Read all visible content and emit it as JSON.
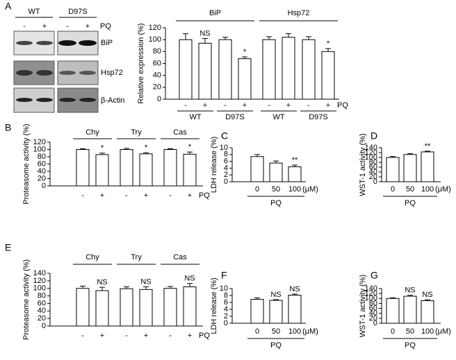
{
  "blot": {
    "panel": "A",
    "genotypes": [
      "WT",
      "D97S"
    ],
    "treatments": [
      "-",
      "+",
      "-",
      "+"
    ],
    "treatment_label": "PQ",
    "proteins": [
      "BiP",
      "Hsp72",
      "β-Actin"
    ]
  },
  "chart_data": [
    {
      "type": "bar",
      "ylabel": "Relative expression (%)",
      "ylim": [
        0,
        120
      ],
      "yticks": [
        0,
        20,
        40,
        60,
        80,
        100,
        120
      ],
      "color": "#ffffff",
      "x_suffix": "PQ",
      "groups": [
        {
          "name": "BiP",
          "subgroups": [
            {
              "name": "WT",
              "categories": [
                "-",
                "+"
              ],
              "values": [
                100,
                94
              ],
              "errors": [
                10,
                8
              ],
              "annotations": [
                null,
                "NS"
              ]
            },
            {
              "name": "D97S",
              "categories": [
                "-",
                "+"
              ],
              "values": [
                100,
                68
              ],
              "errors": [
                4,
                3
              ],
              "annotations": [
                null,
                "*"
              ]
            }
          ]
        },
        {
          "name": "Hsp72",
          "subgroups": [
            {
              "name": "WT",
              "categories": [
                "-",
                "+"
              ],
              "values": [
                100,
                104
              ],
              "errors": [
                5,
                6
              ],
              "annotations": [
                null,
                null
              ]
            },
            {
              "name": "D97S",
              "categories": [
                "-",
                "+"
              ],
              "values": [
                100,
                80
              ],
              "errors": [
                5,
                5
              ],
              "annotations": [
                null,
                "*"
              ]
            }
          ]
        }
      ]
    },
    {
      "type": "bar",
      "panel": "B",
      "ylabel": "Proteasome activity (%)",
      "ylim": [
        0,
        120
      ],
      "yticks": [
        0,
        20,
        40,
        60,
        80,
        100,
        120
      ],
      "color": "#ffffff",
      "x_suffix": "PQ",
      "groups": [
        {
          "name": "Chy",
          "subgroups": [
            {
              "categories": [
                "-",
                "+"
              ],
              "values": [
                100,
                86
              ],
              "errors": [
                2,
                4
              ],
              "annotations": [
                null,
                "*"
              ]
            }
          ]
        },
        {
          "name": "Try",
          "subgroups": [
            {
              "categories": [
                "-",
                "+"
              ],
              "values": [
                100,
                88
              ],
              "errors": [
                3,
                3
              ],
              "annotations": [
                null,
                "*"
              ]
            }
          ]
        },
        {
          "name": "Cas",
          "subgroups": [
            {
              "categories": [
                "-",
                "+"
              ],
              "values": [
                100,
                87
              ],
              "errors": [
                2,
                6
              ],
              "annotations": [
                null,
                "*"
              ]
            }
          ]
        }
      ]
    },
    {
      "type": "bar",
      "panel": "C",
      "ylabel": "LDH release (%)",
      "ylim": [
        0,
        10
      ],
      "yticks": [
        0,
        2,
        4,
        6,
        8,
        10
      ],
      "color": "#ffffff",
      "unit": "(μM)",
      "xlabel": "PQ",
      "groups": [
        {
          "subgroups": [
            {
              "categories": [
                "0",
                "50",
                "100"
              ],
              "values": [
                7.4,
                5.5,
                4.4
              ],
              "errors": [
                0.6,
                0.6,
                0.5
              ],
              "annotations": [
                null,
                null,
                "**"
              ]
            }
          ]
        }
      ]
    },
    {
      "type": "bar",
      "panel": "D",
      "ylabel": "WST-1 activity (%)",
      "ylim": [
        0,
        140
      ],
      "yticks": [
        0,
        20,
        40,
        60,
        80,
        100,
        120,
        140
      ],
      "color": "#ffffff",
      "unit": "(μM)",
      "xlabel": "PQ",
      "groups": [
        {
          "subgroups": [
            {
              "categories": [
                "0",
                "50",
                "100"
              ],
              "values": [
                100,
                112,
                123
              ],
              "errors": [
                4,
                4,
                3
              ],
              "annotations": [
                null,
                null,
                "**"
              ]
            }
          ]
        }
      ]
    },
    {
      "type": "bar",
      "panel": "E",
      "ylabel": "Proteasome activity (%)",
      "ylim": [
        0,
        140
      ],
      "yticks": [
        0,
        20,
        40,
        60,
        80,
        100,
        120,
        140
      ],
      "color": "#ffffff",
      "x_suffix": "PQ",
      "groups": [
        {
          "name": "Chy",
          "subgroups": [
            {
              "categories": [
                "-",
                "+"
              ],
              "values": [
                100,
                94
              ],
              "errors": [
                6,
                9
              ],
              "annotations": [
                null,
                "NS"
              ]
            }
          ]
        },
        {
          "name": "Try",
          "subgroups": [
            {
              "categories": [
                "-",
                "+"
              ],
              "values": [
                99,
                97
              ],
              "errors": [
                5,
                7
              ],
              "annotations": [
                null,
                "NS"
              ]
            }
          ]
        },
        {
          "name": "Cas",
          "subgroups": [
            {
              "categories": [
                "-",
                "+"
              ],
              "values": [
                100,
                104
              ],
              "errors": [
                5,
                9
              ],
              "annotations": [
                null,
                "NS"
              ]
            }
          ]
        }
      ]
    },
    {
      "type": "bar",
      "panel": "F",
      "ylabel": "LDH release (%)",
      "ylim": [
        0,
        10
      ],
      "yticks": [
        0,
        2,
        4,
        6,
        8,
        10
      ],
      "color": "#ffffff",
      "unit": "(μM)",
      "xlabel": "PQ",
      "groups": [
        {
          "subgroups": [
            {
              "categories": [
                "0",
                "50",
                "100"
              ],
              "values": [
                6.9,
                6.6,
                8.1
              ],
              "errors": [
                0.4,
                0.2,
                0.3
              ],
              "annotations": [
                null,
                "NS",
                "NS"
              ]
            }
          ]
        }
      ]
    },
    {
      "type": "bar",
      "panel": "G",
      "ylabel": "WST-1 activity (%)",
      "ylim": [
        0,
        140
      ],
      "yticks": [
        0,
        20,
        40,
        60,
        80,
        100,
        120,
        140
      ],
      "color": "#ffffff",
      "unit": "(μM)",
      "xlabel": "PQ",
      "groups": [
        {
          "subgroups": [
            {
              "categories": [
                "0",
                "50",
                "100"
              ],
              "values": [
                100,
                109,
                91
              ],
              "errors": [
                3,
                4,
                4
              ],
              "annotations": [
                null,
                "NS",
                "NS"
              ]
            }
          ]
        }
      ]
    }
  ]
}
